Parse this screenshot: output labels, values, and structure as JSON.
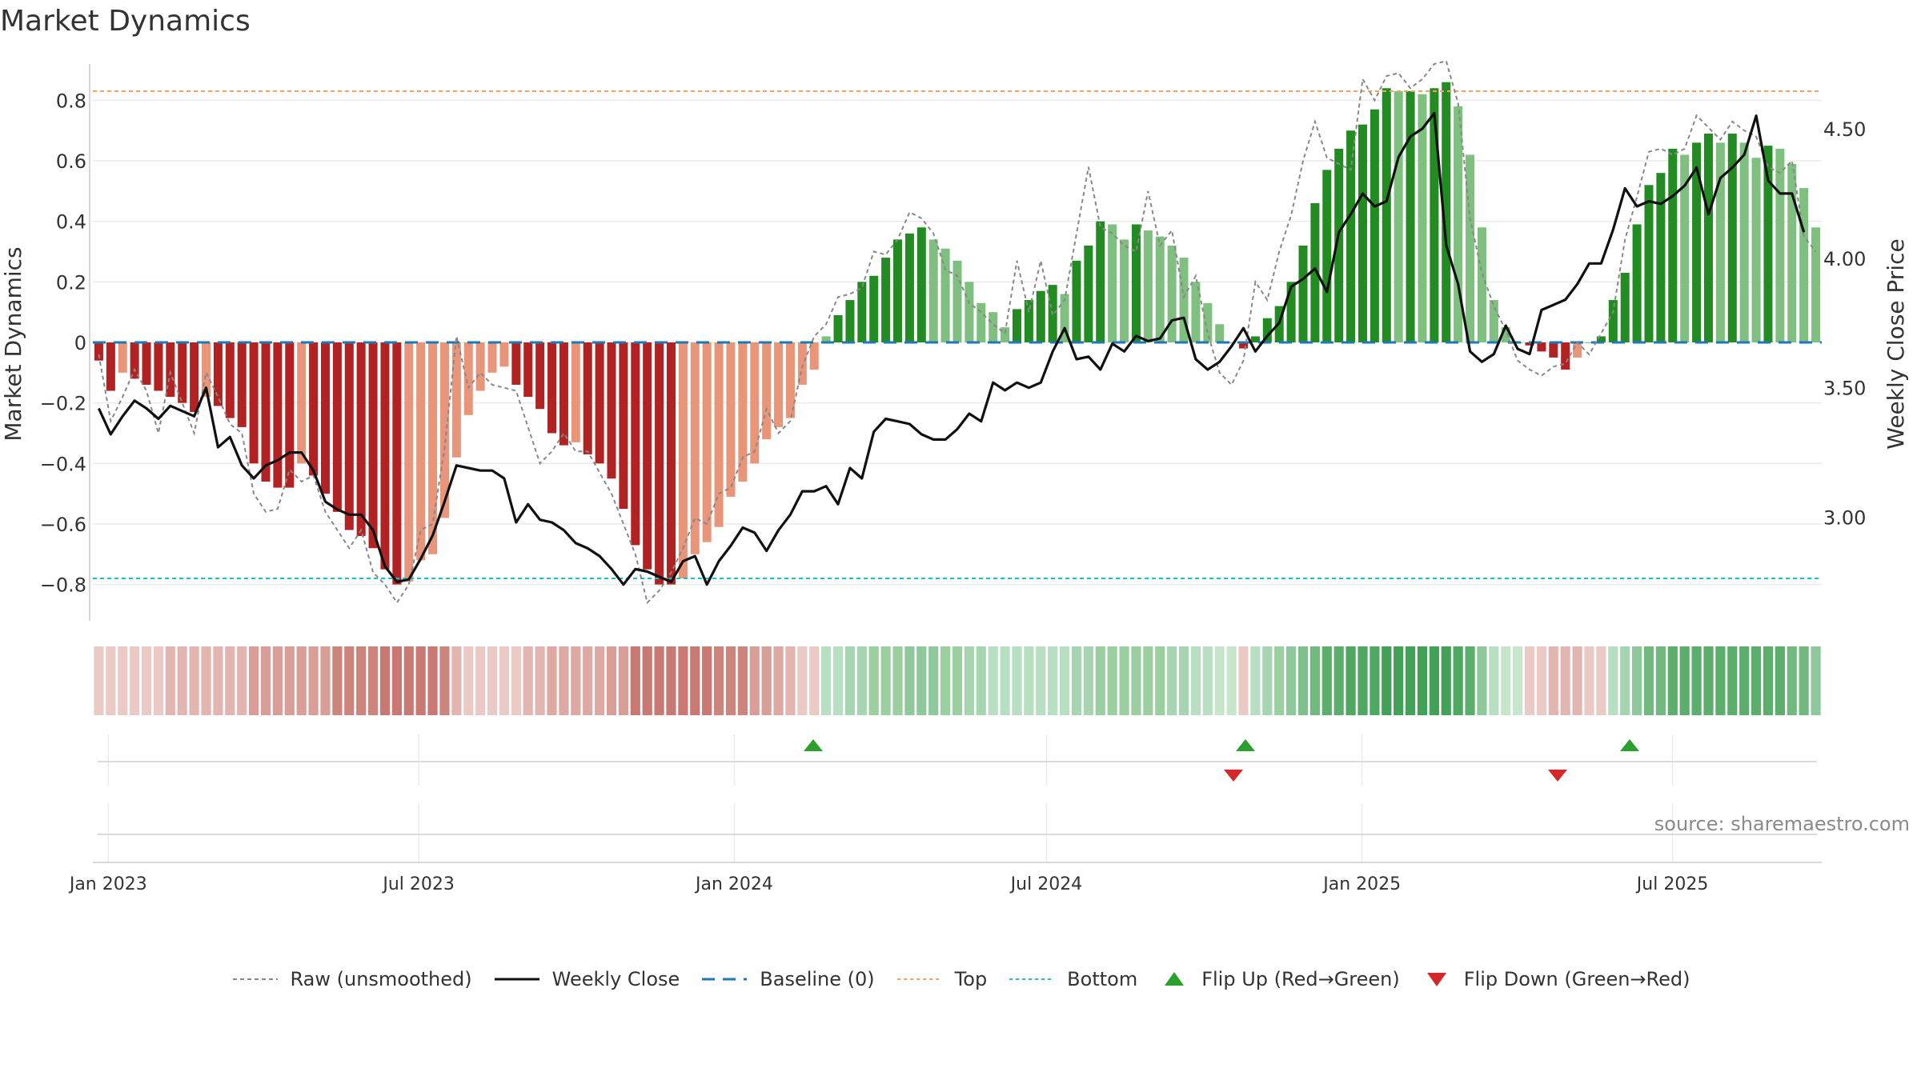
{
  "title": "Market Dynamics",
  "source_text": "source: sharemaestro.com",
  "colors": {
    "red_strong": "#b22222",
    "red_light": "#e8957a",
    "green_strong": "#228b22",
    "green_light": "#7fbf7f",
    "raw_line": "#888888",
    "close_line": "#111111",
    "baseline": "#1f77b4",
    "top_line": "#f4a261",
    "bottom_line": "#17becf",
    "flip_up": "#2ca02c",
    "flip_down": "#d62728"
  },
  "legend": {
    "raw": "Raw (unsmoothed)",
    "close": "Weekly Close",
    "baseline": "Baseline (0)",
    "top": "Top",
    "bottom": "Bottom",
    "flip_up": "Flip Up (Red→Green)",
    "flip_down": "Flip Down (Green→Red)"
  },
  "chart_data": {
    "type": "bar",
    "title": "Market Dynamics",
    "ylabel": "Market Dynamics",
    "y2label": "Weekly Close Price",
    "ylim": [
      -0.92,
      0.92
    ],
    "y_ticks": [
      0.8,
      0.6,
      0.4,
      0.2,
      0,
      -0.2,
      -0.4,
      -0.6,
      -0.8
    ],
    "y_tick_labels": [
      "0.8",
      "0.6",
      "0.4",
      "0.2",
      "0",
      "−0.2",
      "−0.4",
      "−0.6",
      "−0.8"
    ],
    "y2lim": [
      2.6,
      4.75
    ],
    "y2_ticks": [
      4.5,
      4.0,
      3.5,
      3.0
    ],
    "y2_tick_labels": [
      "4.50",
      "4.00",
      "3.50",
      "3.00"
    ],
    "x_start": "2022-12-23",
    "x_end": "2025-09-26",
    "x_ticks": [
      "2023-01-01",
      "2023-07-01",
      "2024-01-01",
      "2024-07-01",
      "2025-01-01",
      "2025-07-01"
    ],
    "x_tick_labels": [
      "Jan 2023",
      "Jul 2023",
      "Jan 2024",
      "Jul 2024",
      "Jan 2025",
      "Jul 2025"
    ],
    "top_level": 0.83,
    "bottom_level": -0.78,
    "baseline_level": 0,
    "bars": [
      -0.06,
      -0.16,
      -0.1,
      -0.12,
      -0.14,
      -0.16,
      -0.18,
      -0.2,
      -0.23,
      -0.18,
      -0.21,
      -0.25,
      -0.28,
      -0.4,
      -0.46,
      -0.48,
      -0.48,
      -0.4,
      -0.44,
      -0.5,
      -0.56,
      -0.62,
      -0.64,
      -0.68,
      -0.75,
      -0.8,
      -0.79,
      -0.72,
      -0.7,
      -0.58,
      -0.38,
      -0.24,
      -0.16,
      -0.1,
      -0.08,
      -0.14,
      -0.18,
      -0.22,
      -0.3,
      -0.34,
      -0.33,
      -0.37,
      -0.4,
      -0.45,
      -0.55,
      -0.67,
      -0.75,
      -0.8,
      -0.8,
      -0.78,
      -0.7,
      -0.66,
      -0.61,
      -0.51,
      -0.46,
      -0.4,
      -0.32,
      -0.28,
      -0.25,
      -0.14,
      -0.09,
      0.02,
      0.09,
      0.14,
      0.2,
      0.22,
      0.28,
      0.34,
      0.36,
      0.38,
      0.34,
      0.31,
      0.27,
      0.2,
      0.13,
      0.1,
      0.05,
      0.11,
      0.14,
      0.17,
      0.19,
      0.16,
      0.27,
      0.32,
      0.4,
      0.39,
      0.34,
      0.39,
      0.37,
      0.35,
      0.32,
      0.28,
      0.2,
      0.13,
      0.06,
      0.0,
      -0.02,
      0.02,
      0.08,
      0.12,
      0.2,
      0.32,
      0.46,
      0.57,
      0.64,
      0.7,
      0.72,
      0.77,
      0.84,
      0.83,
      0.83,
      0.82,
      0.84,
      0.86,
      0.78,
      0.62,
      0.38,
      0.14,
      0.05,
      0.0,
      -0.01,
      -0.03,
      -0.05,
      -0.09,
      -0.05,
      0.0,
      0.02,
      0.14,
      0.23,
      0.39,
      0.52,
      0.56,
      0.64,
      0.62,
      0.66,
      0.69,
      0.66,
      0.69,
      0.66,
      0.61,
      0.65,
      0.64,
      0.59,
      0.51,
      0.38
    ],
    "raw": [
      -0.04,
      -0.26,
      -0.18,
      -0.09,
      -0.16,
      -0.3,
      -0.1,
      -0.2,
      -0.3,
      -0.1,
      -0.18,
      -0.27,
      -0.3,
      -0.5,
      -0.56,
      -0.55,
      -0.42,
      -0.46,
      -0.44,
      -0.56,
      -0.62,
      -0.68,
      -0.62,
      -0.76,
      -0.8,
      -0.86,
      -0.8,
      -0.62,
      -0.6,
      -0.35,
      0.02,
      -0.15,
      -0.1,
      -0.14,
      -0.15,
      -0.16,
      -0.28,
      -0.4,
      -0.36,
      -0.3,
      -0.36,
      -0.36,
      -0.43,
      -0.5,
      -0.6,
      -0.7,
      -0.86,
      -0.82,
      -0.76,
      -0.68,
      -0.58,
      -0.6,
      -0.5,
      -0.48,
      -0.38,
      -0.36,
      -0.22,
      -0.3,
      -0.26,
      -0.08,
      0.02,
      0.06,
      0.15,
      0.16,
      0.18,
      0.3,
      0.29,
      0.34,
      0.43,
      0.41,
      0.36,
      0.24,
      0.22,
      0.13,
      0.1,
      0.06,
      0.03,
      0.27,
      0.1,
      0.27,
      0.09,
      0.14,
      0.36,
      0.58,
      0.38,
      0.36,
      0.32,
      0.3,
      0.5,
      0.32,
      0.37,
      0.15,
      0.22,
      0.03,
      -0.1,
      -0.14,
      -0.06,
      0.2,
      0.14,
      0.3,
      0.42,
      0.6,
      0.73,
      0.61,
      0.59,
      0.57,
      0.87,
      0.8,
      0.88,
      0.89,
      0.84,
      0.87,
      0.92,
      0.93,
      0.79,
      0.41,
      0.23,
      0.12,
      0.04,
      -0.06,
      -0.09,
      -0.11,
      -0.08,
      -0.07,
      0.0,
      -0.04,
      0.03,
      0.1,
      0.34,
      0.48,
      0.63,
      0.64,
      0.62,
      0.64,
      0.75,
      0.71,
      0.67,
      0.73,
      0.7,
      0.68,
      0.58,
      0.56,
      0.6,
      0.35,
      0.3
    ],
    "close": [
      3.42,
      3.32,
      3.39,
      3.45,
      3.42,
      3.38,
      3.43,
      3.41,
      3.39,
      3.5,
      3.27,
      3.31,
      3.2,
      3.15,
      3.2,
      3.22,
      3.25,
      3.25,
      3.18,
      3.06,
      3.03,
      3.01,
      3.01,
      2.95,
      2.81,
      2.75,
      2.76,
      2.84,
      2.93,
      3.06,
      3.2,
      3.19,
      3.18,
      3.18,
      3.15,
      2.98,
      3.05,
      2.99,
      2.98,
      2.95,
      2.9,
      2.88,
      2.85,
      2.8,
      2.74,
      2.8,
      2.79,
      2.77,
      2.75,
      2.83,
      2.85,
      2.74,
      2.83,
      2.89,
      2.96,
      2.94,
      2.87,
      2.95,
      3.01,
      3.1,
      3.1,
      3.12,
      3.05,
      3.19,
      3.15,
      3.33,
      3.38,
      3.37,
      3.36,
      3.32,
      3.3,
      3.3,
      3.34,
      3.4,
      3.37,
      3.52,
      3.49,
      3.52,
      3.5,
      3.52,
      3.64,
      3.73,
      3.61,
      3.62,
      3.57,
      3.67,
      3.64,
      3.7,
      3.68,
      3.69,
      3.76,
      3.77,
      3.61,
      3.57,
      3.6,
      3.66,
      3.73,
      3.64,
      3.7,
      3.75,
      3.89,
      3.92,
      3.96,
      3.87,
      4.1,
      4.17,
      4.25,
      4.2,
      4.22,
      4.39,
      4.47,
      4.5,
      4.56,
      4.05,
      3.9,
      3.64,
      3.6,
      3.63,
      3.74,
      3.65,
      3.63,
      3.8,
      3.82,
      3.84,
      3.9,
      3.98,
      3.98,
      4.11,
      4.27,
      4.2,
      4.22,
      4.21,
      4.24,
      4.28,
      4.35,
      4.17,
      4.31,
      4.35,
      4.4,
      4.55,
      4.3,
      4.25,
      4.25,
      4.1
    ],
    "strip_shades": [
      "#ebc9c5",
      "#ebc9c5",
      "#ebc9c5",
      "#ebc9c5",
      "#ebc9c5",
      "#ebc9c5",
      "#e3b5b0",
      "#e3b5b0",
      "#e3b5b0",
      "#e3b5b0",
      "#e3b5b0",
      "#e3b5b0",
      "#e3b5b0",
      "#d99e98",
      "#d99e98",
      "#d99e98",
      "#d99e98",
      "#d99e98",
      "#d99e98",
      "#d99e98",
      "#cd847d",
      "#cd847d",
      "#cd847d",
      "#cd847d",
      "#c97873",
      "#c97873",
      "#c97873",
      "#c97873",
      "#c97873",
      "#cd847d",
      "#e3b5b0",
      "#ebc9c5",
      "#ebc9c5",
      "#ebc9c5",
      "#ebc9c5",
      "#ebc9c5",
      "#e3b5b0",
      "#e3b5b0",
      "#dfa9a3",
      "#dfa9a3",
      "#dfa9a3",
      "#dfa9a3",
      "#dfa9a3",
      "#d99e98",
      "#d99e98",
      "#c97873",
      "#c97873",
      "#c97873",
      "#c97873",
      "#c97873",
      "#c97873",
      "#c97873",
      "#cd847d",
      "#cd847d",
      "#cd847d",
      "#d99e98",
      "#d99e98",
      "#dfa9a3",
      "#e3b5b0",
      "#ebc9c5",
      "#ebc9c5",
      "#b9dfc2",
      "#b9dfc2",
      "#a7d5b2",
      "#a7d5b2",
      "#9ccf9f",
      "#9ccf9f",
      "#9ccf9f",
      "#8fc89a",
      "#8fc89a",
      "#8fc89a",
      "#9ccf9f",
      "#9ccf9f",
      "#a7d5b2",
      "#a7d5b2",
      "#b9dfc2",
      "#b9dfc2",
      "#b9dfc2",
      "#b9dfc2",
      "#b9dfc2",
      "#b9dfc2",
      "#b9dfc2",
      "#a7d5b2",
      "#a7d5b2",
      "#9ccf9f",
      "#9ccf9f",
      "#9ccf9f",
      "#9ccf9f",
      "#9ccf9f",
      "#9ccf9f",
      "#a7d5b2",
      "#a7d5b2",
      "#b9dfc2",
      "#b9dfc2",
      "#c8e6cc",
      "#c8e6cc",
      "#ebc9c5",
      "#b9dfc2",
      "#a7d5b2",
      "#9ccf9f",
      "#8fc89a",
      "#7fbf8b",
      "#72b97f",
      "#5cae6c",
      "#5cae6c",
      "#4ea861",
      "#4ea861",
      "#4ea861",
      "#43a157",
      "#43a157",
      "#43a157",
      "#43a157",
      "#43a157",
      "#43a157",
      "#4ea861",
      "#5cae6c",
      "#8fc89a",
      "#b9dfc2",
      "#c8e6cc",
      "#c8e6cc",
      "#ebc9c5",
      "#ebc9c5",
      "#e3b5b0",
      "#e3b5b0",
      "#e3b5b0",
      "#ebc9c5",
      "#ebc9c5",
      "#b9dfc2",
      "#a7d5b2",
      "#8fc89a",
      "#72b97f",
      "#72b97f",
      "#5cae6c",
      "#5cae6c",
      "#5cae6c",
      "#5cae6c",
      "#5cae6c",
      "#5cae6c",
      "#5cae6c",
      "#5cae6c",
      "#5cae6c",
      "#5cae6c",
      "#72b97f",
      "#72b97f",
      "#8fc89a"
    ],
    "flips_up": [
      "2024-02-16",
      "2024-10-25",
      "2025-06-06"
    ],
    "flips_down": [
      "2024-10-18",
      "2025-04-25"
    ]
  }
}
